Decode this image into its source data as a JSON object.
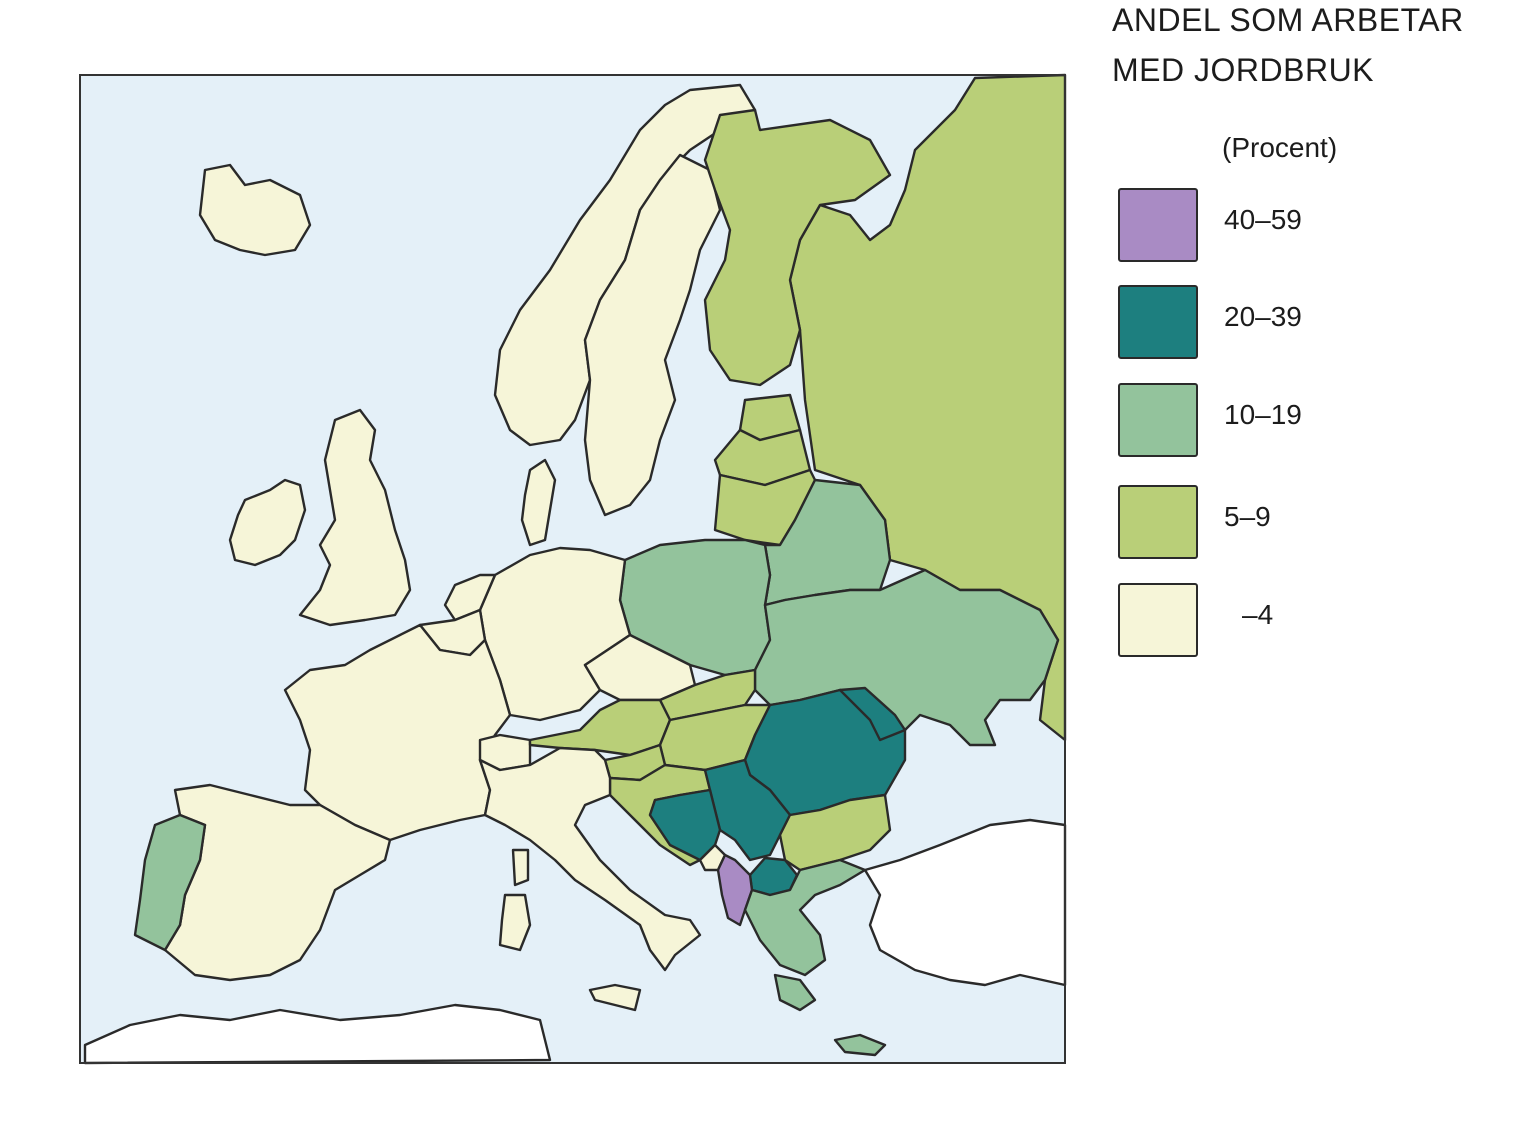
{
  "title_line1": "ANDEL SOM ARBETAR",
  "title_line2": "MED JORDBRUK",
  "unit": "(Procent)",
  "colors": {
    "sea": "#e4f0f8",
    "land_outside": "#ffffff",
    "c1": "#a98bc4",
    "c2": "#1d7f7f",
    "c3": "#93c39c",
    "c4": "#b9cf78",
    "c5": "#f6f5d8"
  },
  "legend": [
    {
      "label": "40–59",
      "color": "#a98bc4"
    },
    {
      "label": "20–39",
      "color": "#1d7f7f"
    },
    {
      "label": "10–19",
      "color": "#93c39c"
    },
    {
      "label": "5–9",
      "color": "#b9cf78"
    },
    {
      "label": "–4",
      "color": "#f6f5d8"
    }
  ]
}
